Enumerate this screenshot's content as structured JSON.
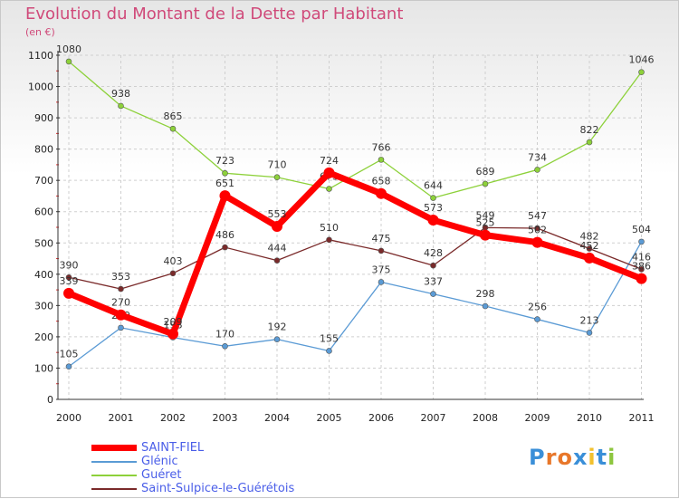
{
  "title": "Evolution du Montant de la Dette par Habitant",
  "unit": "(en €)",
  "logo": {
    "parts": [
      "P",
      "r",
      "o",
      "x",
      "i",
      "t",
      "i"
    ],
    "colors": [
      "#3a8fd8",
      "#e8772a",
      "#e8772a",
      "#3a8fd8",
      "#f2c12e",
      "#3a8fd8",
      "#8dc63f"
    ]
  },
  "chart_data": {
    "type": "line",
    "title": "Evolution du Montant de la Dette par Habitant",
    "ylabel": "(en €)",
    "xlabel": "",
    "x": [
      "2000",
      "2001",
      "2002",
      "2003",
      "2004",
      "2005",
      "2006",
      "2007",
      "2008",
      "2009",
      "2010",
      "2011"
    ],
    "ylim": [
      0,
      1100
    ],
    "yticks": [
      0,
      100,
      200,
      300,
      400,
      500,
      600,
      700,
      800,
      900,
      1000,
      1100
    ],
    "grid": true,
    "legend": "bottom-left",
    "series": [
      {
        "name": "SAINT-FIEL",
        "color": "#ff0000",
        "emphasis": true,
        "values": [
          339,
          270,
          209,
          651,
          553,
          724,
          658,
          573,
          525,
          502,
          452,
          386
        ]
      },
      {
        "name": "Glénic",
        "color": "#5b9bd5",
        "values": [
          105,
          229,
          198,
          170,
          192,
          155,
          375,
          337,
          298,
          256,
          213,
          504
        ]
      },
      {
        "name": "Guéret",
        "color": "#8dd13a",
        "values": [
          1080,
          938,
          865,
          723,
          710,
          673,
          766,
          644,
          689,
          734,
          822,
          1046
        ]
      },
      {
        "name": "Saint-Sulpice-le-Guérétois",
        "color": "#7a2a2a",
        "values": [
          390,
          353,
          403,
          486,
          444,
          510,
          475,
          428,
          549,
          547,
          482,
          416
        ]
      }
    ]
  }
}
